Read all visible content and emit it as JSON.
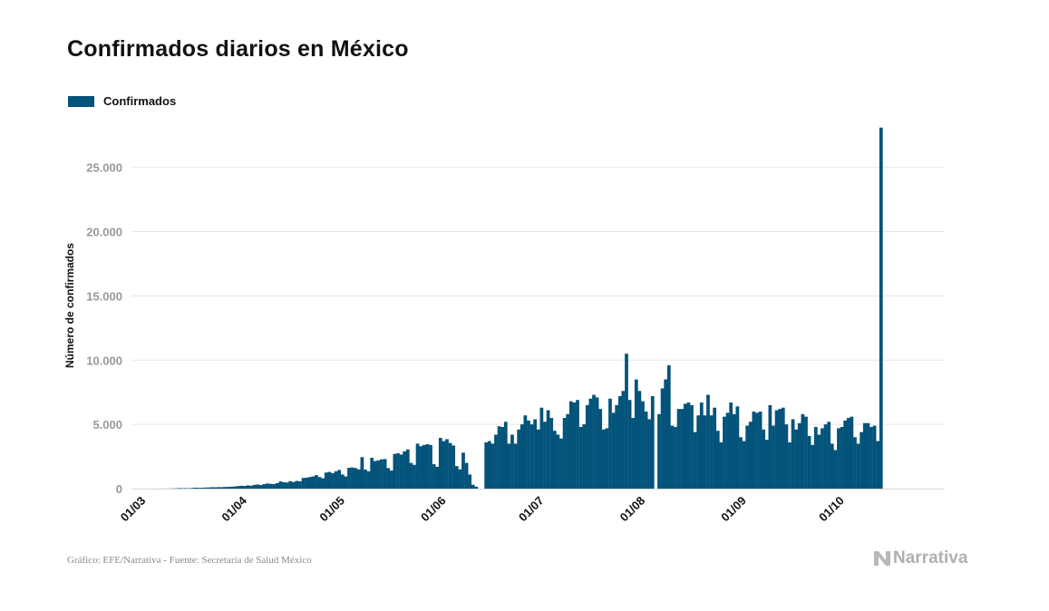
{
  "header": {
    "title": "Confirmados diarios en México"
  },
  "legend": {
    "label": "Confirmados",
    "color": "#03537a"
  },
  "footer": {
    "source": "Gráfico: EFE/Narrativa - Fuente: Secretaría de Salud México",
    "brand": "Narrativa"
  },
  "chart_data": {
    "type": "bar",
    "title": "Confirmados diarios en México",
    "xlabel": "",
    "ylabel": "Número de confirmados",
    "ylim": [
      0,
      29000
    ],
    "yticks": [
      0,
      5000,
      10000,
      15000,
      20000,
      25000
    ],
    "ytick_labels": [
      "0",
      "5.000",
      "10.000",
      "15.000",
      "20.000",
      "25.000"
    ],
    "xtick_labels": [
      "01/03",
      "01/04",
      "01/05",
      "01/06",
      "01/07",
      "01/08",
      "01/09",
      "01/10"
    ],
    "xtick_day_index": [
      0,
      31,
      61,
      92,
      122,
      153,
      184,
      214
    ],
    "first_day": "28/02",
    "series": [
      {
        "name": "Confirmados",
        "values": [
          1,
          2,
          3,
          0,
          1,
          0,
          2,
          3,
          4,
          4,
          5,
          12,
          15,
          26,
          41,
          29,
          37,
          29,
          51,
          72,
          62,
          64,
          84,
          89,
          105,
          100,
          115,
          113,
          128,
          133,
          150,
          168,
          200,
          220,
          205,
          250,
          230,
          290,
          320,
          280,
          350,
          396,
          375,
          350,
          425,
          560,
          500,
          480,
          580,
          520,
          600,
          570,
          830,
          850,
          900,
          950,
          1050,
          900,
          800,
          1250,
          1300,
          1200,
          1350,
          1450,
          1100,
          950,
          1620,
          1650,
          1600,
          1500,
          2450,
          1480,
          1350,
          2400,
          2150,
          2200,
          2280,
          2300,
          1600,
          1400,
          2700,
          2750,
          2650,
          2900,
          3050,
          2000,
          1850,
          3500,
          3300,
          3400,
          3450,
          3400,
          1900,
          1700,
          3950,
          3700,
          3850,
          3550,
          3350,
          1750,
          1500,
          2800,
          2000,
          1100,
          300,
          150,
          0,
          0,
          3600,
          3700,
          3500,
          4200,
          4850,
          4800,
          5200,
          3500,
          4200,
          3500,
          4600,
          5000,
          5700,
          5300,
          5000,
          5400,
          4600,
          6300,
          5200,
          6100,
          5500,
          4500,
          4200,
          3900,
          5500,
          5800,
          6800,
          6700,
          6900,
          4800,
          5000,
          6500,
          7000,
          7300,
          7100,
          6200,
          4600,
          4700,
          7000,
          5900,
          6500,
          7200,
          7600,
          10500,
          6900,
          5500,
          8500,
          7600,
          6800,
          6000,
          5400,
          7200,
          0,
          5800,
          7800,
          8500,
          9600,
          4900,
          4800,
          6200,
          6200,
          6600,
          6700,
          6500,
          4400,
          5700,
          6700,
          5700,
          7300,
          5700,
          6300,
          4500,
          3600,
          5600,
          5900,
          6700,
          5800,
          6400,
          4000,
          3700,
          4900,
          5200,
          6000,
          5900,
          6000,
          4600,
          3800,
          6500,
          4900,
          6100,
          6200,
          6300,
          5000,
          3600,
          5400,
          4600,
          5100,
          5800,
          5600,
          4100,
          3400,
          4800,
          4200,
          4700,
          5000,
          5200,
          3500,
          3000,
          4700,
          4800,
          5300,
          5500,
          5600,
          4000,
          3500,
          4400,
          5100,
          5100,
          4800,
          4900,
          3700,
          28100
        ]
      }
    ]
  }
}
